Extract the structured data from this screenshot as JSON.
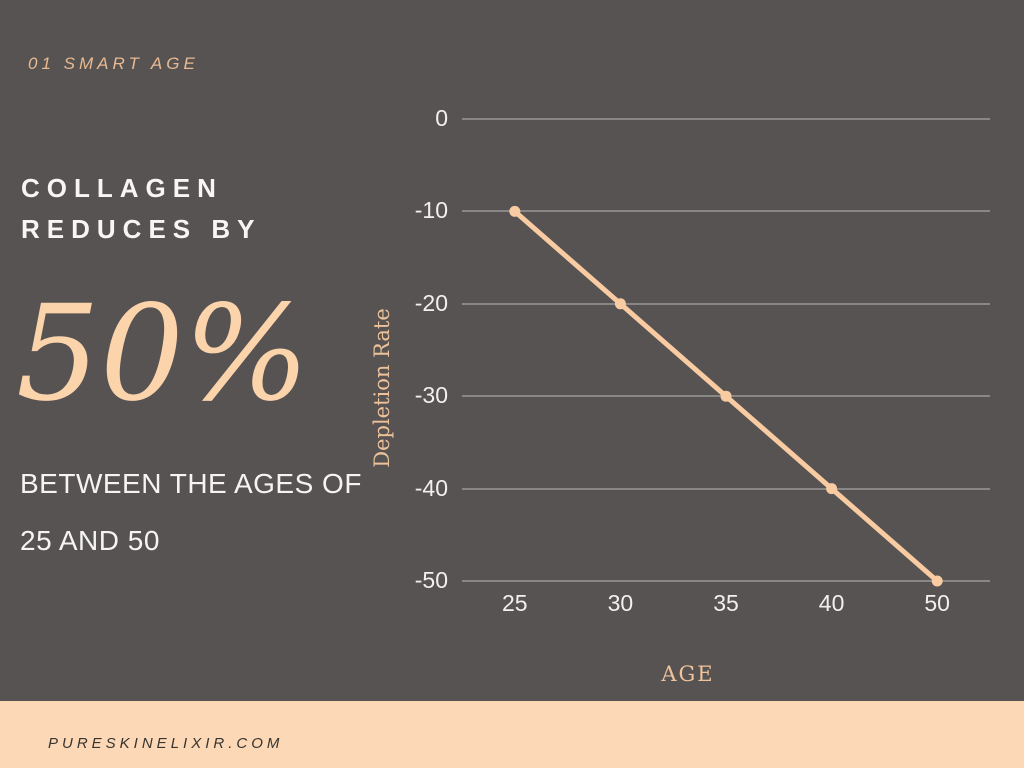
{
  "header": {
    "kicker": "01 SMART AGE"
  },
  "left": {
    "headline_line1": "COLLAGEN",
    "headline_line2": "REDUCES BY",
    "stat": "50%",
    "sub_line1": "BETWEEN THE AGES OF",
    "sub_line2": "25 AND 50"
  },
  "chart_data": {
    "type": "line",
    "categories": [
      "25",
      "30",
      "35",
      "40",
      "50"
    ],
    "values": [
      -10,
      -20,
      -30,
      -40,
      -50
    ],
    "series_name": "collagen-depletion",
    "xlabel": "AGE",
    "ylabel": "Depletion Rate",
    "yticks": [
      0,
      -10,
      -20,
      -30,
      -40,
      -50
    ],
    "ylim": [
      0,
      -50
    ],
    "grid": "horizontal-only",
    "legend": "none",
    "line_color": "#f8cba2",
    "marker": "circle"
  },
  "footer": {
    "url": "PURESKINELIXIR.COM"
  },
  "colors": {
    "background": "#565352",
    "accent_stat": "#fcd4ac",
    "kicker": "#e8ba92",
    "axis_title": "#edc29b",
    "tick_text": "#f2f0ef",
    "text_white": "#f5f4f3",
    "gridline": "rgba(255,255,255,0.30)",
    "footer_bg": "#fcd8b6",
    "footer_text": "#38342f"
  }
}
